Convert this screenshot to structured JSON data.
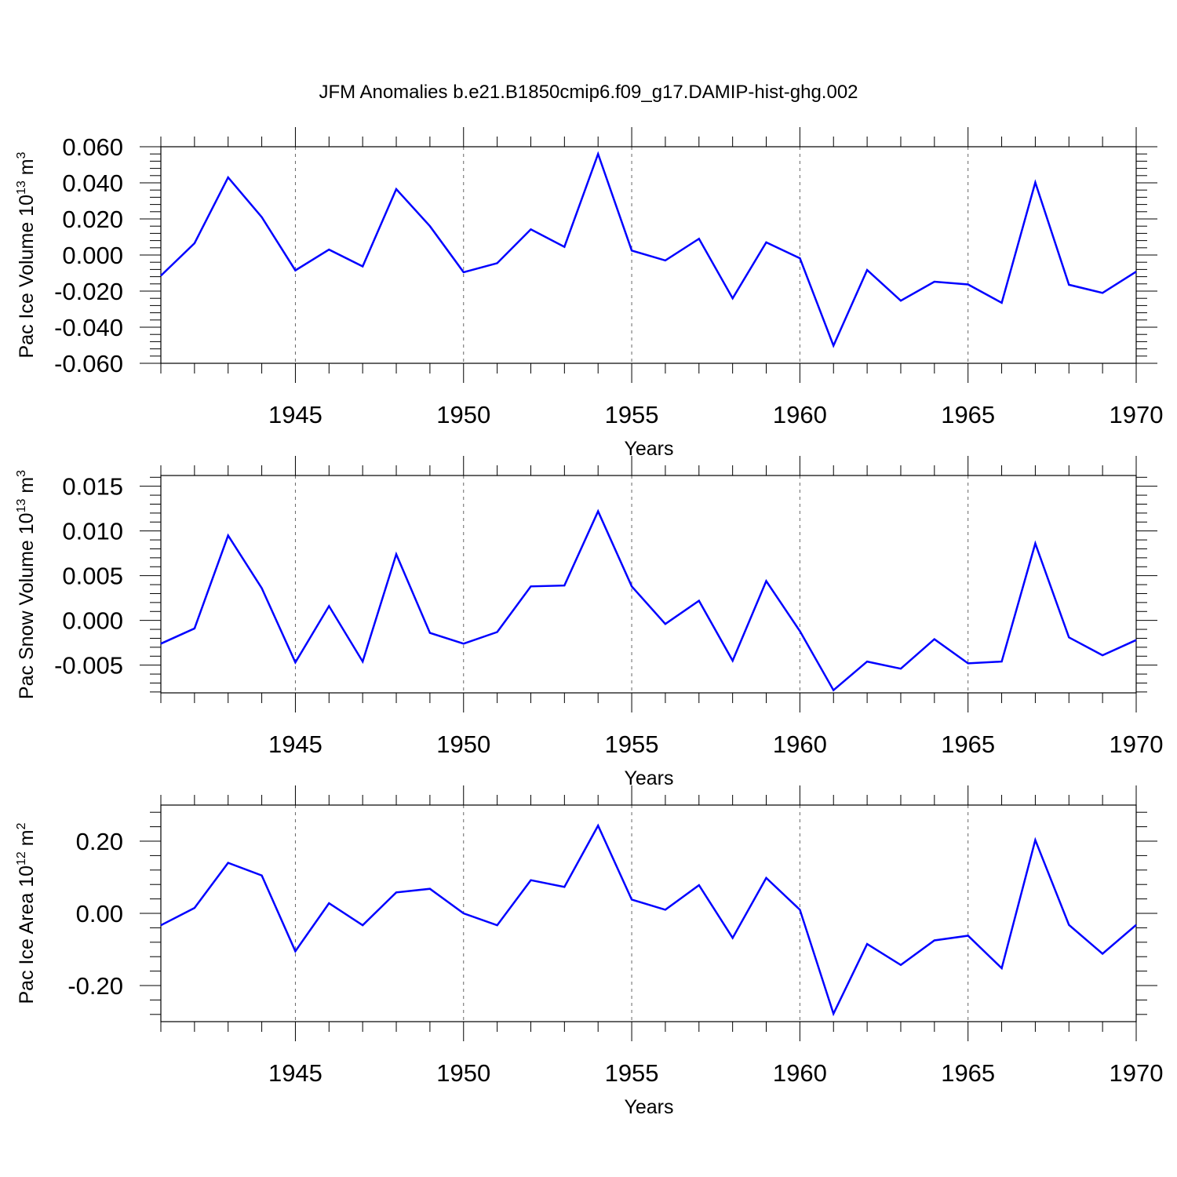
{
  "title": "JFM Anomalies b.e21.B1850cmip6.f09_g17.DAMIP-hist-ghg.002",
  "colors": {
    "line": "#0000ff",
    "axis": "#000000",
    "grid": "#666666"
  },
  "chart_data": [
    {
      "type": "line",
      "xlabel": "Years",
      "ylabel_text": "Pac Ice Volume 10",
      "ylabel_exp": "13",
      "ylabel_unit": " m",
      "ylabel_unit_exp": "3",
      "xlim": [
        1941,
        1970
      ],
      "ylim": [
        -0.06,
        0.06
      ],
      "xticks": [
        1945,
        1950,
        1955,
        1960,
        1965,
        1970
      ],
      "xtick_labels": [
        "1945",
        "1950",
        "1955",
        "1960",
        "1965",
        "1970"
      ],
      "yticks": [
        0.06,
        0.04,
        0.02,
        0.0,
        -0.02,
        -0.04,
        -0.06
      ],
      "ytick_labels": [
        "0.060",
        "0.040",
        "0.020",
        "0.000",
        "-0.020",
        "-0.040",
        "-0.060"
      ],
      "grid": "vertical dashed at major x ticks",
      "series": [
        {
          "x": [
            1941,
            1942,
            1943,
            1944,
            1945,
            1946,
            1947,
            1948,
            1949,
            1950,
            1951,
            1952,
            1953,
            1954,
            1955,
            1956,
            1957,
            1958,
            1959,
            1960,
            1961,
            1962,
            1963,
            1964,
            1965,
            1966,
            1967,
            1968,
            1969,
            1970
          ],
          "values": [
            -0.0115,
            0.0065,
            0.043,
            0.021,
            -0.0085,
            0.003,
            -0.0063,
            0.0365,
            0.016,
            -0.0095,
            -0.0045,
            0.0142,
            0.0045,
            0.056,
            0.0025,
            -0.003,
            0.009,
            -0.024,
            0.007,
            -0.0018,
            -0.0502,
            -0.0083,
            -0.0253,
            -0.0148,
            -0.0163,
            -0.0265,
            0.0402,
            -0.0165,
            -0.021,
            -0.0092
          ]
        }
      ]
    },
    {
      "type": "line",
      "xlabel": "Years",
      "ylabel_text": "Pac Snow Volume 10",
      "ylabel_exp": "13",
      "ylabel_unit": " m",
      "ylabel_unit_exp": "3",
      "xlim": [
        1941,
        1970
      ],
      "ylim": [
        -0.0081,
        0.0162
      ],
      "xticks": [
        1945,
        1950,
        1955,
        1960,
        1965,
        1970
      ],
      "xtick_labels": [
        "1945",
        "1950",
        "1955",
        "1960",
        "1965",
        "1970"
      ],
      "yticks": [
        0.015,
        0.01,
        0.005,
        0.0,
        -0.005
      ],
      "ytick_labels": [
        "0.015",
        "0.010",
        "0.005",
        "0.000",
        "-0.005"
      ],
      "grid": "vertical dashed at major x ticks",
      "series": [
        {
          "x": [
            1941,
            1942,
            1943,
            1944,
            1945,
            1946,
            1947,
            1948,
            1949,
            1950,
            1951,
            1952,
            1953,
            1954,
            1955,
            1956,
            1957,
            1958,
            1959,
            1960,
            1961,
            1962,
            1963,
            1964,
            1965,
            1966,
            1967,
            1968,
            1969,
            1970
          ],
          "values": [
            -0.0026,
            -0.0009,
            0.0095,
            0.0036,
            -0.0047,
            0.0016,
            -0.0046,
            0.0074,
            -0.0014,
            -0.0026,
            -0.0013,
            0.0038,
            0.0039,
            0.0122,
            0.0038,
            -0.0004,
            0.0022,
            -0.0045,
            0.0044,
            -0.0012,
            -0.0078,
            -0.0046,
            -0.0054,
            -0.0021,
            -0.0048,
            -0.0046,
            0.0086,
            -0.0019,
            -0.0039,
            -0.0022
          ]
        }
      ]
    },
    {
      "type": "line",
      "xlabel": "Years",
      "ylabel_text": "Pac Ice Area 10",
      "ylabel_exp": "12",
      "ylabel_unit": " m",
      "ylabel_unit_exp": "2",
      "xlim": [
        1941,
        1970
      ],
      "ylim": [
        -0.3,
        0.3
      ],
      "xticks": [
        1945,
        1950,
        1955,
        1960,
        1965,
        1970
      ],
      "xtick_labels": [
        "1945",
        "1950",
        "1955",
        "1960",
        "1965",
        "1970"
      ],
      "yticks": [
        0.2,
        0.0,
        -0.2
      ],
      "ytick_labels": [
        "0.20",
        "0.00",
        "-0.20"
      ],
      "grid": "vertical dashed at major x ticks",
      "series": [
        {
          "x": [
            1941,
            1942,
            1943,
            1944,
            1945,
            1946,
            1947,
            1948,
            1949,
            1950,
            1951,
            1952,
            1953,
            1954,
            1955,
            1956,
            1957,
            1958,
            1959,
            1960,
            1961,
            1962,
            1963,
            1964,
            1965,
            1966,
            1967,
            1968,
            1969,
            1970
          ],
          "values": [
            -0.033,
            0.015,
            0.14,
            0.105,
            -0.105,
            0.028,
            -0.033,
            0.058,
            0.068,
            0.0,
            -0.033,
            0.092,
            0.073,
            0.243,
            0.038,
            0.01,
            0.078,
            -0.068,
            0.098,
            0.01,
            -0.278,
            -0.085,
            -0.143,
            -0.075,
            -0.062,
            -0.152,
            0.203,
            -0.032,
            -0.112,
            -0.032
          ]
        }
      ]
    }
  ]
}
